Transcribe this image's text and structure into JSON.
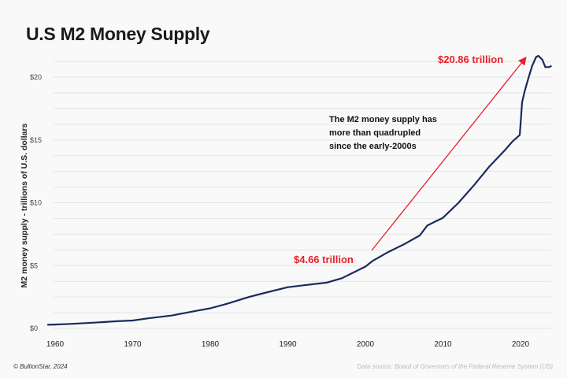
{
  "chart_data": {
    "type": "line",
    "title": "U.S M2 Money Supply",
    "ylabel": "M2 money supply - trillions of U.S. dollars",
    "xlabel": "",
    "xlim": [
      1959,
      2024
    ],
    "ylim": [
      0,
      21.9
    ],
    "x_ticks": [
      1960,
      1970,
      1980,
      1990,
      2000,
      2010,
      2020
    ],
    "y_ticks": [
      {
        "v": 0,
        "label": "$0"
      },
      {
        "v": 5,
        "label": "$5"
      },
      {
        "v": 10,
        "label": "$10"
      },
      {
        "v": 15,
        "label": "$15"
      },
      {
        "v": 20,
        "label": "$20"
      }
    ],
    "grid": "horizontal",
    "line_color": "#1b2a5c",
    "annotation_color": "#e8202a",
    "x": [
      1959,
      1960,
      1962,
      1965,
      1968,
      1970,
      1972,
      1975,
      1978,
      1980,
      1982,
      1985,
      1987,
      1990,
      1992,
      1995,
      1997,
      2000,
      2001,
      2003,
      2005,
      2007,
      2008,
      2009,
      2010,
      2011,
      2012,
      2014,
      2016,
      2018,
      2019,
      2019.9,
      2020.2,
      2020.5,
      2021,
      2021.5,
      2022,
      2022.3,
      2022.8,
      2023.2,
      2023.7,
      2024
    ],
    "y": [
      0.29,
      0.31,
      0.36,
      0.46,
      0.57,
      0.63,
      0.8,
      1.02,
      1.37,
      1.6,
      1.93,
      2.5,
      2.82,
      3.28,
      3.43,
      3.64,
      4.0,
      4.92,
      5.4,
      6.1,
      6.7,
      7.4,
      8.2,
      8.5,
      8.8,
      9.4,
      10.0,
      11.4,
      12.9,
      14.2,
      14.9,
      15.4,
      18.0,
      18.8,
      19.9,
      20.9,
      21.6,
      21.7,
      21.4,
      20.8,
      20.8,
      20.9
    ],
    "annotations": {
      "start": {
        "label": "$4.66 trillion",
        "x": 2000.5,
        "y": 4.66
      },
      "end": {
        "label": "$20.86 trillion",
        "x": 2021.7,
        "y": 20.86
      },
      "note": [
        "The M2 money supply has",
        "more than quadrupled",
        "since the early-2000s"
      ]
    }
  },
  "footer": {
    "credit": "© BullionStar, 2024",
    "source": "Data source: Board of Governors of the Federal Reserve System (US)"
  }
}
